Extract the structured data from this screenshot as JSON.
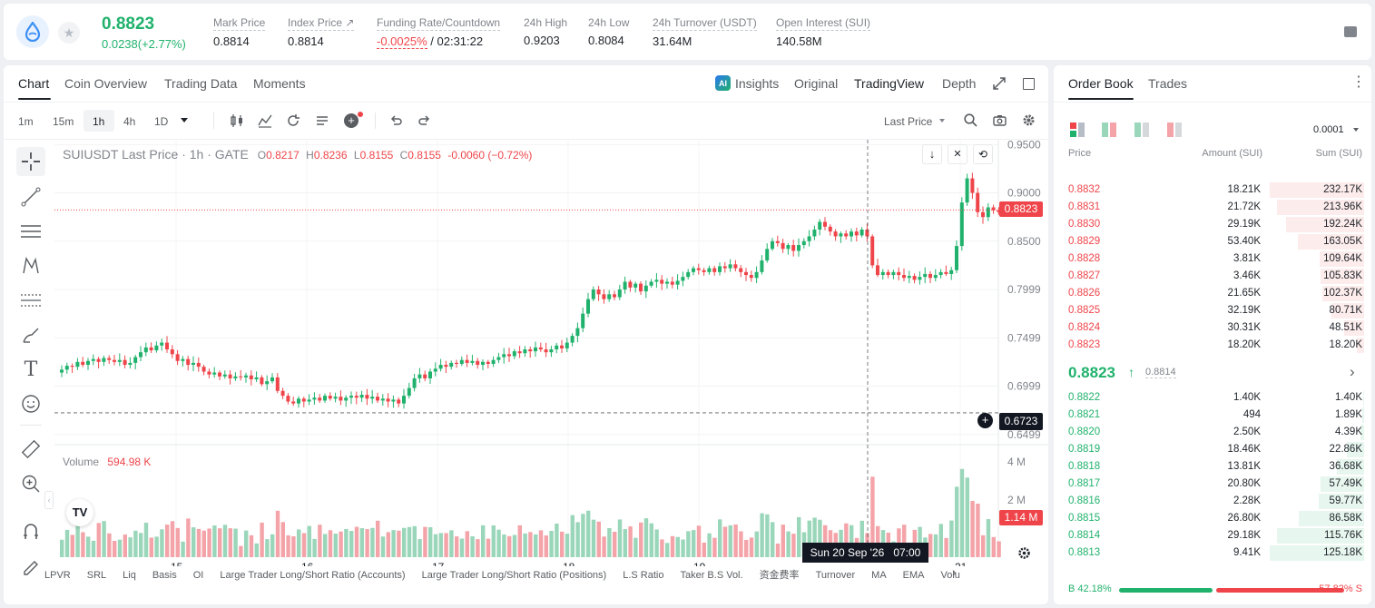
{
  "header": {
    "last_price": "0.8823",
    "change": "0.0238(+2.77%)",
    "stats": [
      {
        "label": "Mark Price",
        "value": "0.8814"
      },
      {
        "label": "Index Price ↗",
        "value": "0.8814"
      },
      {
        "label": "24h High",
        "value": "0.9203"
      },
      {
        "label": "24h Low",
        "value": "0.8084"
      },
      {
        "label": "24h Turnover (USDT)",
        "value": "31.64M"
      },
      {
        "label": "Open Interest (SUI)",
        "value": "140.58M"
      }
    ],
    "funding": {
      "label": "Funding Rate/Countdown",
      "rate": "-0.0025%",
      "countdown": "/ 02:31:22"
    }
  },
  "chart_tabs": [
    "Chart",
    "Coin Overview",
    "Trading Data",
    "Moments"
  ],
  "view_tabs": {
    "insights": "Insights",
    "original": "Original",
    "tradingview": "TradingView",
    "depth": "Depth"
  },
  "timeframes": [
    "1m",
    "15m",
    "1h",
    "4h",
    "1D"
  ],
  "active_timeframe": "1h",
  "price_source": "Last Price",
  "legend": {
    "symbol": "SUIUSDT Last Price · 1h · GATE",
    "o_label": "O",
    "o": "0.8217",
    "h_label": "H",
    "h": "0.8236",
    "l_label": "L",
    "l": "0.8155",
    "c_label": "C",
    "c": "0.8155",
    "chg": "-0.0060 (−0.72%)"
  },
  "volume_legend": {
    "label": "Volume",
    "value": "594.98 K"
  },
  "crosshair": {
    "price": "0.6723",
    "time": "Sun 20 Sep '26   07:00"
  },
  "current_price_tag": "0.8823",
  "volume_tag": "1.14 M",
  "indicators": [
    "LPVR",
    "SRL",
    "Liq",
    "Basis",
    "OI",
    "Large Trader Long/Short Ratio (Accounts)",
    "Large Trader Long/Short Ratio (Positions)",
    "L.S Ratio",
    "Taker B.S Vol.",
    "资金费率",
    "Turnover",
    "MA",
    "EMA",
    "Volu"
  ],
  "chart_data": {
    "type": "candlestick",
    "price_axis_ticks": [
      "0.9500",
      "0.9000",
      "0.8500",
      "0.7999",
      "0.7499",
      "0.6999",
      "0.6499"
    ],
    "volume_axis_ticks": [
      "4 M",
      "2 M"
    ],
    "x_ticks": [
      "15",
      "16",
      "17",
      "18",
      "19",
      "21"
    ],
    "ylim": [
      0.645,
      0.955
    ],
    "close_series": [
      0.717,
      0.721,
      0.72,
      0.725,
      0.722,
      0.726,
      0.728,
      0.725,
      0.729,
      0.727,
      0.725,
      0.727,
      0.722,
      0.724,
      0.73,
      0.735,
      0.74,
      0.737,
      0.742,
      0.745,
      0.738,
      0.733,
      0.726,
      0.728,
      0.722,
      0.724,
      0.72,
      0.715,
      0.712,
      0.714,
      0.71,
      0.712,
      0.708,
      0.71,
      0.709,
      0.711,
      0.707,
      0.709,
      0.702,
      0.705,
      0.709,
      0.695,
      0.69,
      0.684,
      0.682,
      0.687,
      0.684,
      0.686,
      0.688,
      0.685,
      0.69,
      0.687,
      0.689,
      0.685,
      0.688,
      0.69,
      0.688,
      0.691,
      0.687,
      0.689,
      0.685,
      0.687,
      0.684,
      0.686,
      0.682,
      0.69,
      0.698,
      0.708,
      0.712,
      0.708,
      0.715,
      0.718,
      0.722,
      0.72,
      0.724,
      0.723,
      0.727,
      0.724,
      0.726,
      0.722,
      0.725,
      0.723,
      0.727,
      0.73,
      0.733,
      0.731,
      0.736,
      0.734,
      0.738,
      0.736,
      0.74,
      0.738,
      0.735,
      0.738,
      0.742,
      0.739,
      0.745,
      0.752,
      0.76,
      0.775,
      0.79,
      0.8,
      0.795,
      0.79,
      0.795,
      0.792,
      0.8,
      0.808,
      0.802,
      0.806,
      0.798,
      0.804,
      0.808,
      0.81,
      0.806,
      0.808,
      0.805,
      0.809,
      0.813,
      0.818,
      0.822,
      0.82,
      0.818,
      0.822,
      0.818,
      0.824,
      0.822,
      0.826,
      0.822,
      0.818,
      0.815,
      0.812,
      0.818,
      0.83,
      0.842,
      0.85,
      0.848,
      0.842,
      0.846,
      0.84,
      0.846,
      0.85,
      0.855,
      0.862,
      0.87,
      0.865,
      0.86,
      0.855,
      0.858,
      0.855,
      0.86,
      0.856,
      0.862,
      0.855,
      0.825,
      0.815,
      0.818,
      0.815,
      0.818,
      0.815,
      0.812,
      0.814,
      0.81,
      0.813,
      0.816,
      0.812,
      0.815,
      0.818,
      0.816,
      0.82,
      0.845,
      0.89,
      0.915,
      0.9,
      0.88,
      0.875,
      0.885,
      0.882,
      0.88
    ]
  },
  "order_book": {
    "tabs": [
      "Order Book",
      "Trades"
    ],
    "precision": "0.0001",
    "columns": [
      "Price",
      "Amount (SUI)",
      "Sum (SUI)"
    ],
    "asks": [
      {
        "price": "0.8832",
        "amount": "18.21K",
        "sum": "232.17K",
        "depth": 1.0
      },
      {
        "price": "0.8831",
        "amount": "21.72K",
        "sum": "213.96K",
        "depth": 0.92
      },
      {
        "price": "0.8830",
        "amount": "29.19K",
        "sum": "192.24K",
        "depth": 0.83
      },
      {
        "price": "0.8829",
        "amount": "53.40K",
        "sum": "163.05K",
        "depth": 0.7
      },
      {
        "price": "0.8828",
        "amount": "3.81K",
        "sum": "109.64K",
        "depth": 0.47
      },
      {
        "price": "0.8827",
        "amount": "3.46K",
        "sum": "105.83K",
        "depth": 0.46
      },
      {
        "price": "0.8826",
        "amount": "21.65K",
        "sum": "102.37K",
        "depth": 0.44
      },
      {
        "price": "0.8825",
        "amount": "32.19K",
        "sum": "80.71K",
        "depth": 0.35
      },
      {
        "price": "0.8824",
        "amount": "30.31K",
        "sum": "48.51K",
        "depth": 0.21
      },
      {
        "price": "0.8823",
        "amount": "18.20K",
        "sum": "18.20K",
        "depth": 0.08
      }
    ],
    "mid_price": "0.8823",
    "mid_mark": "0.8814",
    "bids": [
      {
        "price": "0.8822",
        "amount": "1.40K",
        "sum": "1.40K",
        "depth": 0.01
      },
      {
        "price": "0.8821",
        "amount": "494",
        "sum": "1.89K",
        "depth": 0.015
      },
      {
        "price": "0.8820",
        "amount": "2.50K",
        "sum": "4.39K",
        "depth": 0.04
      },
      {
        "price": "0.8819",
        "amount": "18.46K",
        "sum": "22.86K",
        "depth": 0.18
      },
      {
        "price": "0.8818",
        "amount": "13.81K",
        "sum": "36.68K",
        "depth": 0.29
      },
      {
        "price": "0.8817",
        "amount": "20.80K",
        "sum": "57.49K",
        "depth": 0.46
      },
      {
        "price": "0.8816",
        "amount": "2.28K",
        "sum": "59.77K",
        "depth": 0.48
      },
      {
        "price": "0.8815",
        "amount": "26.80K",
        "sum": "86.58K",
        "depth": 0.69
      },
      {
        "price": "0.8814",
        "amount": "29.18K",
        "sum": "115.76K",
        "depth": 0.92
      },
      {
        "price": "0.8813",
        "amount": "9.41K",
        "sum": "125.18K",
        "depth": 1.0
      }
    ],
    "buy_ratio": "B 42.18%",
    "sell_ratio": "57.82% S",
    "buy_fraction": 0.4218
  },
  "colors": {
    "up": "#20b26c",
    "down": "#ef454a",
    "up_vol": "#9ad6b9",
    "down_vol": "#f4a3a8"
  }
}
